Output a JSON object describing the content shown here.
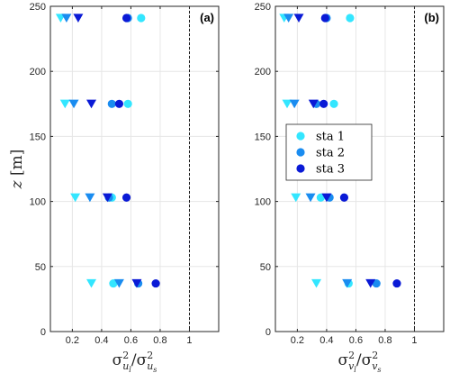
{
  "chart_data": [
    {
      "type": "scatter",
      "panel_label": "(a)",
      "xlim": [
        0.05,
        1.2
      ],
      "ylim": [
        0,
        250
      ],
      "xticks": [
        0.2,
        0.4,
        0.6,
        0.8,
        1
      ],
      "xtick_labels": [
        "0.2",
        "0.4",
        "0.6",
        "0.8",
        "1"
      ],
      "yticks": [
        0,
        50,
        100,
        150,
        200,
        250
      ],
      "ytick_labels": [
        "0",
        "50",
        "100",
        "150",
        "200",
        "250"
      ],
      "xlabel_math": {
        "num_base": "σ",
        "num_sup": "2",
        "num_sub": "u",
        "num_subsub": "l",
        "den_base": "σ",
        "den_sup": "2",
        "den_sub": "u",
        "den_subsub": "s"
      },
      "ylabel": {
        "var": "z",
        "unit": "[m]"
      },
      "grid": true,
      "reference_line_x": 1,
      "series": [
        {
          "name": "sta 1",
          "color": "#33e6ff",
          "triangles": [
            {
              "x": 0.12,
              "z": 241
            },
            {
              "x": 0.15,
              "z": 175
            },
            {
              "x": 0.22,
              "z": 103
            },
            {
              "x": 0.33,
              "z": 37
            }
          ],
          "circles": [
            {
              "x": 0.67,
              "z": 241
            },
            {
              "x": 0.58,
              "z": 175
            },
            {
              "x": 0.47,
              "z": 103
            },
            {
              "x": 0.48,
              "z": 37
            }
          ]
        },
        {
          "name": "sta 2",
          "color": "#1a8cf0",
          "triangles": [
            {
              "x": 0.16,
              "z": 241
            },
            {
              "x": 0.21,
              "z": 175
            },
            {
              "x": 0.32,
              "z": 103
            },
            {
              "x": 0.52,
              "z": 37
            }
          ],
          "circles": [
            {
              "x": 0.58,
              "z": 241
            },
            {
              "x": 0.47,
              "z": 175
            },
            {
              "x": 0.45,
              "z": 103
            },
            {
              "x": 0.65,
              "z": 37
            }
          ]
        },
        {
          "name": "sta 3",
          "color": "#0a1ad6",
          "triangles": [
            {
              "x": 0.24,
              "z": 241
            },
            {
              "x": 0.33,
              "z": 175
            },
            {
              "x": 0.44,
              "z": 103
            },
            {
              "x": 0.64,
              "z": 37
            }
          ],
          "circles": [
            {
              "x": 0.57,
              "z": 241
            },
            {
              "x": 0.52,
              "z": 175
            },
            {
              "x": 0.57,
              "z": 103
            },
            {
              "x": 0.77,
              "z": 37
            }
          ]
        }
      ]
    },
    {
      "type": "scatter",
      "panel_label": "(b)",
      "xlim": [
        0.05,
        1.2
      ],
      "ylim": [
        0,
        250
      ],
      "xticks": [
        0.2,
        0.4,
        0.6,
        0.8,
        1
      ],
      "xtick_labels": [
        "0.2",
        "0.4",
        "0.6",
        "0.8",
        "1"
      ],
      "yticks": [
        0,
        50,
        100,
        150,
        200,
        250
      ],
      "ytick_labels": [
        "0",
        "50",
        "100",
        "150",
        "200",
        "250"
      ],
      "xlabel_math": {
        "num_base": "σ",
        "num_sup": "2",
        "num_sub": "v",
        "num_subsub": "l",
        "den_base": "σ",
        "den_sup": "2",
        "den_sub": "v",
        "den_subsub": "s"
      },
      "grid": true,
      "reference_line_x": 1,
      "legend": {
        "position": "center-left",
        "entries": [
          "sta 1",
          "sta 2",
          "sta 3"
        ]
      },
      "series": [
        {
          "name": "sta 1",
          "color": "#33e6ff",
          "triangles": [
            {
              "x": 0.11,
              "z": 241
            },
            {
              "x": 0.13,
              "z": 175
            },
            {
              "x": 0.19,
              "z": 103
            },
            {
              "x": 0.33,
              "z": 37
            }
          ],
          "circles": [
            {
              "x": 0.56,
              "z": 241
            },
            {
              "x": 0.45,
              "z": 175
            },
            {
              "x": 0.36,
              "z": 103
            },
            {
              "x": 0.55,
              "z": 37
            }
          ]
        },
        {
          "name": "sta 2",
          "color": "#1a8cf0",
          "triangles": [
            {
              "x": 0.14,
              "z": 241
            },
            {
              "x": 0.18,
              "z": 175
            },
            {
              "x": 0.29,
              "z": 103
            },
            {
              "x": 0.54,
              "z": 37
            }
          ],
          "circles": [
            {
              "x": 0.4,
              "z": 241
            },
            {
              "x": 0.33,
              "z": 175
            },
            {
              "x": 0.42,
              "z": 103
            },
            {
              "x": 0.74,
              "z": 37
            }
          ]
        },
        {
          "name": "sta 3",
          "color": "#0a1ad6",
          "triangles": [
            {
              "x": 0.21,
              "z": 241
            },
            {
              "x": 0.31,
              "z": 175
            },
            {
              "x": 0.4,
              "z": 103
            },
            {
              "x": 0.7,
              "z": 37
            }
          ],
          "circles": [
            {
              "x": 0.39,
              "z": 241
            },
            {
              "x": 0.38,
              "z": 175
            },
            {
              "x": 0.52,
              "z": 103
            },
            {
              "x": 0.88,
              "z": 37
            }
          ]
        }
      ]
    }
  ]
}
